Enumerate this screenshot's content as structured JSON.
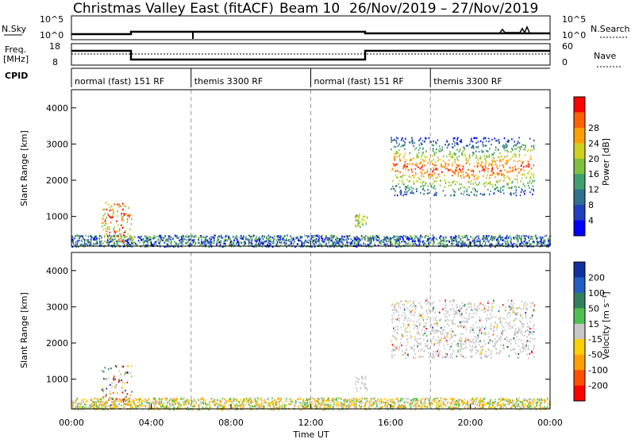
{
  "header": {
    "station": "Christmas Valley East (fitACF)",
    "beam": "Beam 10",
    "date_range": "26/Nov/2019 – 27/Nov/2019"
  },
  "strip_labels": {
    "nsky": "N.Sky",
    "nsky_ticks": [
      "10^5",
      "10^0"
    ],
    "nsearch": "N.Search",
    "nsearch_ticks": [
      "10^5",
      "10^0"
    ],
    "freq": "Freq.",
    "freq_unit": "[MHz]",
    "freq_ticks": [
      "18",
      "8"
    ],
    "nave": "Nave",
    "nave_ticks": [
      "60",
      "0"
    ],
    "cpid": "CPID"
  },
  "cpid_segments": [
    {
      "label": "normal (fast) 151 RF",
      "start_hour": 0,
      "end_hour": 6
    },
    {
      "label": "themis 3300 RF",
      "start_hour": 6,
      "end_hour": 12
    },
    {
      "label": "normal (fast) 151 RF",
      "start_hour": 12,
      "end_hour": 18
    },
    {
      "label": "themis 3300 RF",
      "start_hour": 18,
      "end_hour": 24
    }
  ],
  "x_axis": {
    "label": "Time UT",
    "ticks": [
      "00:00",
      "04:00",
      "08:00",
      "12:00",
      "16:00",
      "20:00",
      "00:00"
    ],
    "tick_hours": [
      0,
      4,
      8,
      12,
      16,
      20,
      24
    ]
  },
  "panels": {
    "power": {
      "ylabel": "Slant Range [km]",
      "yticks": [
        "1000",
        "2000",
        "3000",
        "4000"
      ],
      "colorbar_label": "Power [dB]",
      "colorbar_ticks": [
        "4",
        "8",
        "12",
        "16",
        "20",
        "24",
        "28"
      ]
    },
    "velocity": {
      "ylabel": "Slant Range [km]",
      "yticks": [
        "1000",
        "2000",
        "3000",
        "4000"
      ],
      "colorbar_label": "Velocity [m s⁻¹]",
      "colorbar_ticks": [
        "200",
        "100",
        "50",
        "15",
        "-15",
        "-50",
        "-100",
        "-200"
      ]
    }
  },
  "chart_data": {
    "type": "heatmap",
    "x_range_hours": [
      0,
      24
    ],
    "y_range_km": [
      180,
      4500
    ],
    "power_colors": [
      "#0000ff",
      "#2040c0",
      "#307090",
      "#40a070",
      "#80c040",
      "#d0d020",
      "#ffa000",
      "#ff6000",
      "#ff0000"
    ],
    "velocity_colors": [
      "#1030a0",
      "#2060c0",
      "#308060",
      "#50c050",
      "#c8c8c8",
      "#ffd000",
      "#ffa000",
      "#ff5000",
      "#ff0000"
    ],
    "series": [
      {
        "name": "ground scatter / near range",
        "x_start": 0,
        "x_end": 24,
        "y_start": 180,
        "y_end": 500
      },
      {
        "name": "early echo",
        "x_start": 1.5,
        "x_end": 3.0,
        "y_start": 300,
        "y_end": 1400
      },
      {
        "name": "mid echo",
        "x_start": 14.2,
        "x_end": 14.8,
        "y_start": 700,
        "y_end": 1100
      },
      {
        "name": "far range band",
        "x_start": 16.0,
        "x_end": 23.2,
        "y_start": 1600,
        "y_end": 3200
      }
    ],
    "grid": "vertical dashed lines at 6:00, 12:00, 18:00"
  }
}
